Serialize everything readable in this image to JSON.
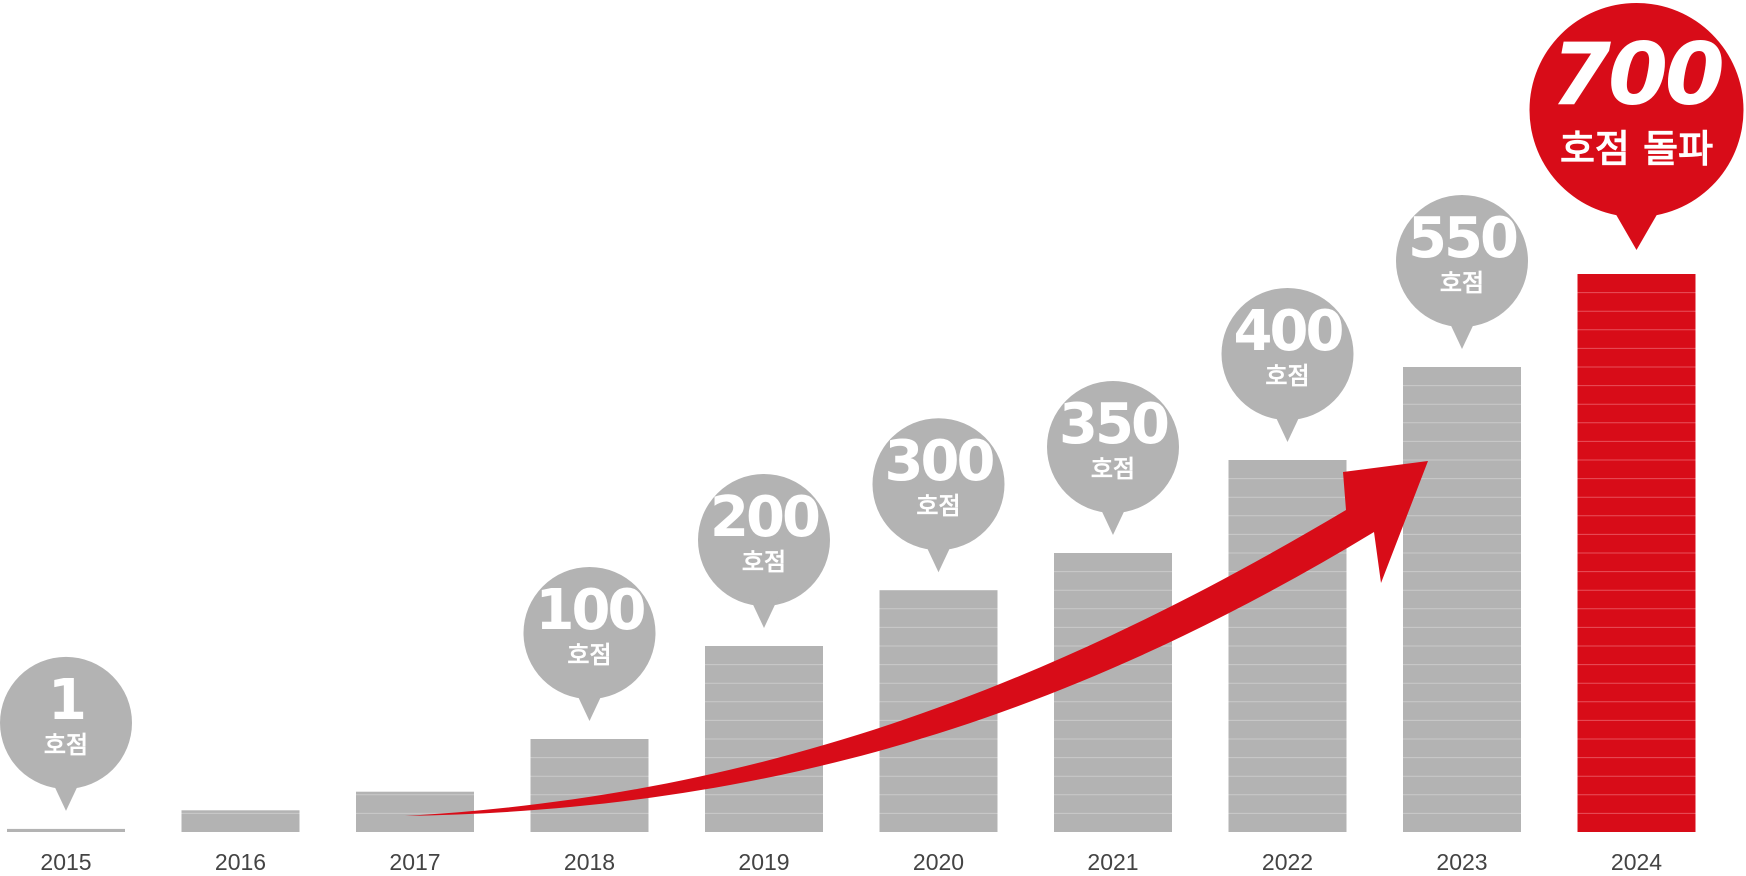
{
  "chart_data": {
    "type": "bar",
    "categories": [
      "2015",
      "2016",
      "2017",
      "2018",
      "2019",
      "2020",
      "2021",
      "2022",
      "2023",
      "2024"
    ],
    "values": [
      5,
      35,
      65,
      150,
      300,
      390,
      450,
      600,
      750,
      900
    ],
    "callouts": [
      {
        "category": "2015",
        "number": "1",
        "unit": "호점"
      },
      {
        "category": "2018",
        "number": "100",
        "unit": "호점"
      },
      {
        "category": "2019",
        "number": "200",
        "unit": "호점"
      },
      {
        "category": "2020",
        "number": "300",
        "unit": "호점"
      },
      {
        "category": "2021",
        "number": "350",
        "unit": "호점"
      },
      {
        "category": "2022",
        "number": "400",
        "unit": "호점"
      },
      {
        "category": "2023",
        "number": "550",
        "unit": "호점"
      },
      {
        "category": "2024",
        "number": "700",
        "unit": "호점 돌파",
        "highlight": true
      }
    ],
    "highlight_category": "2024",
    "ylim": [
      0,
      900
    ],
    "grid": false,
    "legend": "none",
    "trend_arrow": true,
    "colors": {
      "bar": "#b3b3b3",
      "highlight": "#d80c18",
      "callout": "#b3b3b3",
      "callout_highlight": "#d80c18",
      "arrow": "#d80c18",
      "callout_text": "#ffffff",
      "tick_text": "#444444"
    }
  }
}
